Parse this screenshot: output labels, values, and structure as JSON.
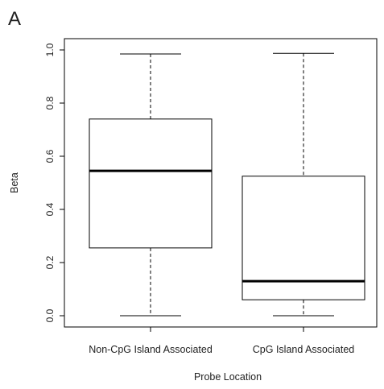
{
  "chart_data": {
    "type": "boxplot",
    "panel_label": "A",
    "title": "",
    "xlabel": "Probe Location",
    "ylabel": "Beta",
    "ylim": [
      0.0,
      1.0
    ],
    "yticks": [
      "0.0",
      "0.2",
      "0.4",
      "0.6",
      "0.8",
      "1.0"
    ],
    "grid": false,
    "categories": [
      "Non-CpG Island Associated",
      "CpG Island Associated"
    ],
    "boxes": [
      {
        "category": "Non-CpG Island Associated",
        "whisker_low": 0.0,
        "q1": 0.255,
        "median": 0.545,
        "q3": 0.74,
        "whisker_high": 0.985
      },
      {
        "category": "CpG Island Associated",
        "whisker_low": 0.0,
        "q1": 0.06,
        "median": 0.13,
        "q3": 0.525,
        "whisker_high": 0.987
      }
    ],
    "colors": {
      "box_fill": "#ffffff",
      "stroke": "#000000",
      "text": "#222222"
    }
  }
}
